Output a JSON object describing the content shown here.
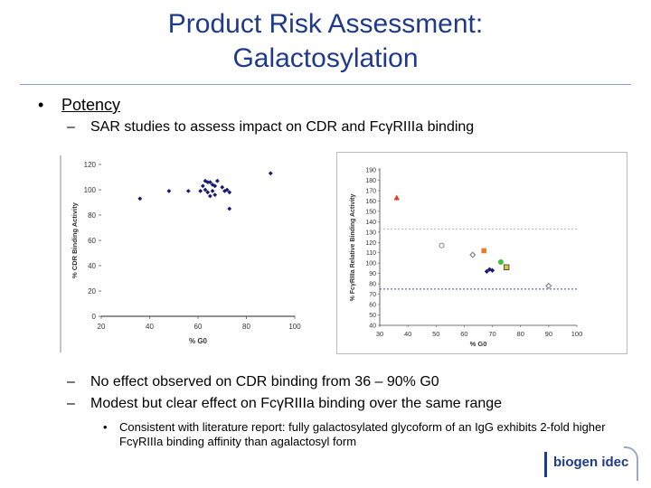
{
  "slide": {
    "title_line1": "Product Risk Assessment:",
    "title_line2": "Galactosylation",
    "bullet_marker": "•",
    "dash_marker": "–",
    "bullet1": "Potency",
    "sub1": "SAR studies to assess impact on CDR and FcγRIIIa binding",
    "sub2": "No effect observed on CDR binding from 36 – 90% G0",
    "sub3": "Modest but clear effect on FcγRIIIa binding over the same range",
    "sub4": "Consistent with literature report: fully galactosylated glycoform of an IgG exhibits 2-fold higher FcγRIIIa binding affinity than agalactosyl form",
    "logo_text": "biogen idec"
  },
  "colors": {
    "title": "#1f3a8a",
    "navy_marker": "#1a1a6e",
    "red": "#e8352a",
    "orange": "#f07b22",
    "green": "#3cc33c",
    "yellow": "#d8c84a",
    "grey_line": "#aaaaaa",
    "blue_line": "#3a4fa8"
  },
  "chart_data": [
    {
      "type": "scatter",
      "title": "",
      "xlabel": "% G0",
      "ylabel": "% CDR Binding Activity",
      "xlim": [
        20,
        100
      ],
      "ylim": [
        0,
        120
      ],
      "xticks": [
        "20",
        "40",
        "60",
        "80",
        "100"
      ],
      "yticks": [
        "0",
        "20",
        "40",
        "60",
        "80",
        "100",
        "120"
      ],
      "series": [
        {
          "name": "CDR",
          "marker": "diamond",
          "points": [
            [
              36,
              93
            ],
            [
              48,
              99
            ],
            [
              56,
              99
            ],
            [
              61,
              99
            ],
            [
              62,
              103
            ],
            [
              63,
              107
            ],
            [
              63,
              100
            ],
            [
              64,
              106
            ],
            [
              64,
              98
            ],
            [
              65,
              95
            ],
            [
              65,
              106
            ],
            [
              66,
              99
            ],
            [
              66,
              104
            ],
            [
              67,
              96
            ],
            [
              67,
              103
            ],
            [
              68,
              107
            ],
            [
              70,
              102
            ],
            [
              71,
              99
            ],
            [
              72,
              100
            ],
            [
              73,
              98
            ],
            [
              73,
              85
            ],
            [
              90,
              113
            ]
          ]
        }
      ]
    },
    {
      "type": "scatter",
      "title": "",
      "xlabel": "% G0",
      "ylabel": "% FcγRIIIa Relative Binding Activity",
      "xlim": [
        30,
        100
      ],
      "ylim": [
        40,
        190
      ],
      "xticks": [
        "30",
        "40",
        "50",
        "60",
        "70",
        "80",
        "90",
        "100"
      ],
      "yticks": [
        "40",
        "50",
        "60",
        "70",
        "80",
        "90",
        "100",
        "110",
        "120",
        "130",
        "140",
        "150",
        "160",
        "170",
        "180",
        "190"
      ],
      "reference_lines": [
        133,
        75
      ],
      "series": [
        {
          "name": "red",
          "color": "red",
          "marker": "triangle",
          "points": [
            [
              36,
              163
            ]
          ]
        },
        {
          "name": "open-1",
          "color": "open",
          "marker": "circle-open",
          "points": [
            [
              52,
              117
            ]
          ]
        },
        {
          "name": "open-2",
          "color": "open",
          "marker": "diamond-open",
          "points": [
            [
              63,
              108
            ]
          ]
        },
        {
          "name": "orange",
          "color": "orange",
          "marker": "square",
          "points": [
            [
              67,
              112
            ]
          ]
        },
        {
          "name": "navy",
          "color": "navy",
          "marker": "diamond",
          "points": [
            [
              68,
              92
            ],
            [
              69,
              94
            ],
            [
              70,
              93
            ]
          ]
        },
        {
          "name": "green",
          "color": "green",
          "marker": "circle",
          "points": [
            [
              73,
              101
            ]
          ]
        },
        {
          "name": "yellow",
          "color": "yellow",
          "marker": "square-outline",
          "points": [
            [
              75,
              96
            ]
          ]
        },
        {
          "name": "open-3",
          "color": "open",
          "marker": "diamond-open",
          "points": [
            [
              90,
              78
            ]
          ]
        }
      ]
    }
  ]
}
